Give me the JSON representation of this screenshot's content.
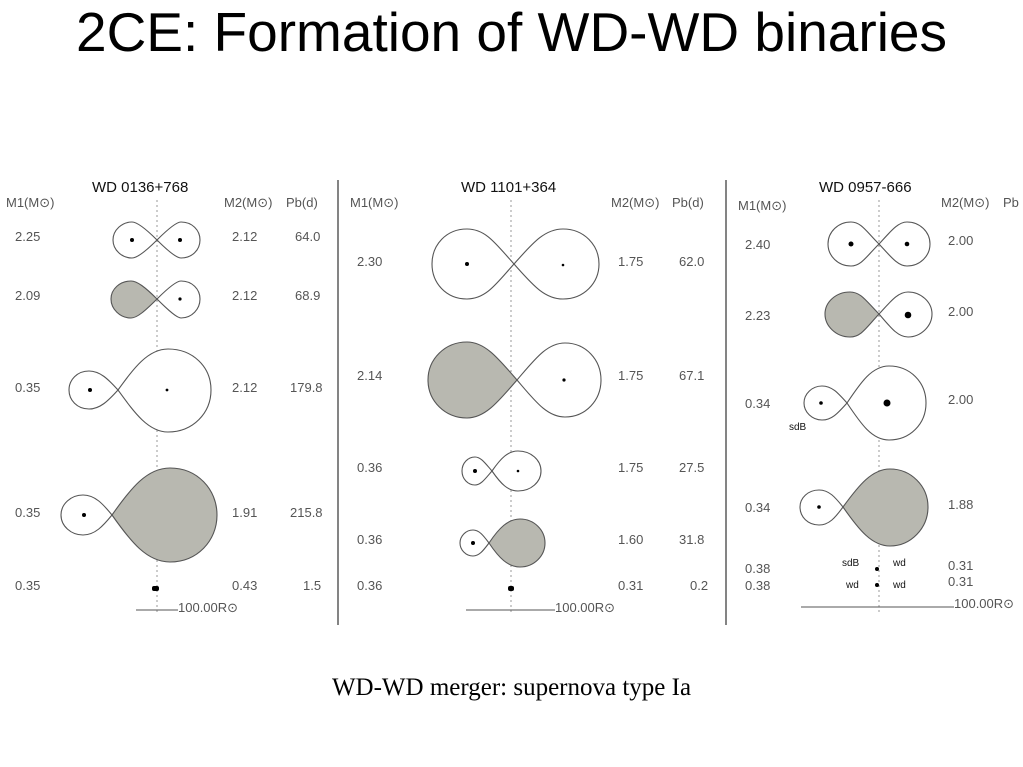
{
  "title": "2CE: Formation of WD-WD binaries",
  "caption": "WD-WD merger: supernova type Ia",
  "colors": {
    "filled_lobe": "#b8b8b0",
    "empty_lobe": "#ffffff",
    "line": "#555555"
  },
  "panels": [
    {
      "name": "WD 0136+768",
      "m1_label": "M1(M⊙)",
      "m2_label": "M2(M⊙)",
      "pb_label": "Pb(d)",
      "scale_label": "100.00R⊙",
      "rows": [
        {
          "m1": "2.25",
          "m2": "2.12",
          "pb": "64.0"
        },
        {
          "m1": "2.09",
          "m2": "2.12",
          "pb": "68.9"
        },
        {
          "m1": "0.35",
          "m2": "2.12",
          "pb": "179.8"
        },
        {
          "m1": "0.35",
          "m2": "1.91",
          "pb": "215.8"
        },
        {
          "m1": "0.35",
          "m2": "0.43",
          "pb": "1.5"
        }
      ]
    },
    {
      "name": "WD 1101+364",
      "m1_label": "M1(M⊙)",
      "m2_label": "M2(M⊙)",
      "pb_label": "Pb(d)",
      "scale_label": "100.00R⊙",
      "rows": [
        {
          "m1": "2.30",
          "m2": "1.75",
          "pb": "62.0"
        },
        {
          "m1": "2.14",
          "m2": "1.75",
          "pb": "67.1"
        },
        {
          "m1": "0.36",
          "m2": "1.75",
          "pb": "27.5"
        },
        {
          "m1": "0.36",
          "m2": "1.60",
          "pb": "31.8"
        },
        {
          "m1": "0.36",
          "m2": "0.31",
          "pb": "0.2"
        }
      ]
    },
    {
      "name": "WD 0957-666",
      "m1_label": "M1(M⊙)",
      "m2_label": "M2(M⊙)",
      "pb_label": "Pb",
      "scale_label": "100.00R⊙",
      "rows": [
        {
          "m1": "2.40",
          "m2": "2.00"
        },
        {
          "m1": "2.23",
          "m2": "2.00"
        },
        {
          "m1": "0.34",
          "m2": "2.00",
          "star_label": "sdB"
        },
        {
          "m1": "0.34",
          "m2": "1.88"
        },
        {
          "m1": "0.38",
          "m2": "0.31",
          "star1_label": "sdB",
          "star2_label": "wd"
        },
        {
          "m1": "0.38",
          "m2": "0.31",
          "star1_label": "wd",
          "star2_label": "wd"
        }
      ]
    }
  ]
}
